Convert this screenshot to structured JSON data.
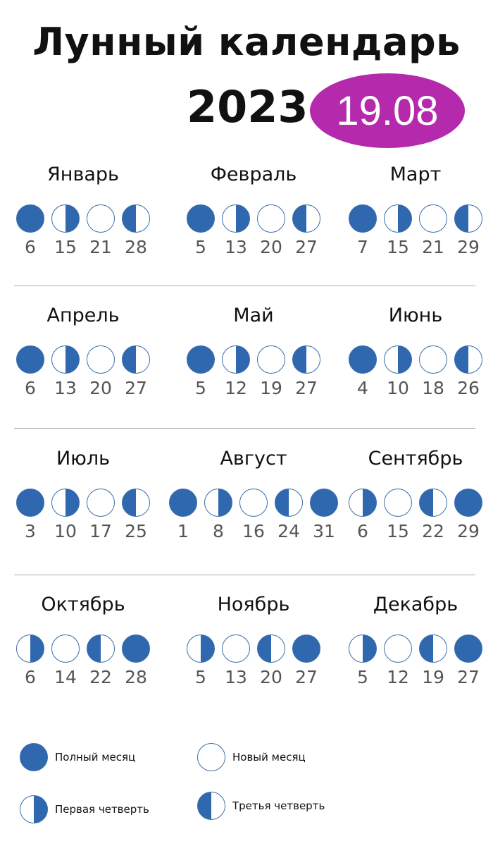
{
  "title": "Лунный календарь",
  "year": "2023",
  "badge": "19.08",
  "colors": {
    "moon": "#3068b0",
    "badge": "#b52aad"
  },
  "months": [
    {
      "name": "Январь",
      "phases": [
        {
          "type": "full",
          "day": "6"
        },
        {
          "type": "q1",
          "day": "15"
        },
        {
          "type": "new",
          "day": "21"
        },
        {
          "type": "q3",
          "day": "28"
        }
      ]
    },
    {
      "name": "Февраль",
      "phases": [
        {
          "type": "full",
          "day": "5"
        },
        {
          "type": "q1",
          "day": "13"
        },
        {
          "type": "new",
          "day": "20"
        },
        {
          "type": "q3",
          "day": "27"
        }
      ]
    },
    {
      "name": "Март",
      "phases": [
        {
          "type": "full",
          "day": "7"
        },
        {
          "type": "q1",
          "day": "15"
        },
        {
          "type": "new",
          "day": "21"
        },
        {
          "type": "q3",
          "day": "29"
        }
      ]
    },
    {
      "name": "Апрель",
      "phases": [
        {
          "type": "full",
          "day": "6"
        },
        {
          "type": "q1",
          "day": "13"
        },
        {
          "type": "new",
          "day": "20"
        },
        {
          "type": "q3",
          "day": "27"
        }
      ]
    },
    {
      "name": "Май",
      "phases": [
        {
          "type": "full",
          "day": "5"
        },
        {
          "type": "q1",
          "day": "12"
        },
        {
          "type": "new",
          "day": "19"
        },
        {
          "type": "q3",
          "day": "27"
        }
      ]
    },
    {
      "name": "Июнь",
      "phases": [
        {
          "type": "full",
          "day": "4"
        },
        {
          "type": "q1",
          "day": "10"
        },
        {
          "type": "new",
          "day": "18"
        },
        {
          "type": "q3",
          "day": "26"
        }
      ]
    },
    {
      "name": "Июль",
      "phases": [
        {
          "type": "full",
          "day": "3"
        },
        {
          "type": "q1",
          "day": "10"
        },
        {
          "type": "new",
          "day": "17"
        },
        {
          "type": "q3",
          "day": "25"
        }
      ]
    },
    {
      "name": "Август",
      "phases": [
        {
          "type": "full",
          "day": "1"
        },
        {
          "type": "q1",
          "day": "8"
        },
        {
          "type": "new",
          "day": "16"
        },
        {
          "type": "q3",
          "day": "24"
        },
        {
          "type": "full",
          "day": "31"
        }
      ]
    },
    {
      "name": "Сентябрь",
      "phases": [
        {
          "type": "q1",
          "day": "6"
        },
        {
          "type": "new",
          "day": "15"
        },
        {
          "type": "q3",
          "day": "22"
        },
        {
          "type": "full",
          "day": "29"
        }
      ]
    },
    {
      "name": "Октябрь",
      "phases": [
        {
          "type": "q1",
          "day": "6"
        },
        {
          "type": "new",
          "day": "14"
        },
        {
          "type": "q3",
          "day": "22"
        },
        {
          "type": "full",
          "day": "28"
        }
      ]
    },
    {
      "name": "Ноябрь",
      "phases": [
        {
          "type": "q1",
          "day": "5"
        },
        {
          "type": "new",
          "day": "13"
        },
        {
          "type": "q3",
          "day": "20"
        },
        {
          "type": "full",
          "day": "27"
        }
      ]
    },
    {
      "name": "Декабрь",
      "phases": [
        {
          "type": "q1",
          "day": "5"
        },
        {
          "type": "new",
          "day": "12"
        },
        {
          "type": "q3",
          "day": "19"
        },
        {
          "type": "full",
          "day": "27"
        }
      ]
    }
  ],
  "legend": {
    "full": "Полный месяц",
    "new": "Новый месяц",
    "q1": "Первая четверть",
    "q3": "Третья четверть"
  }
}
